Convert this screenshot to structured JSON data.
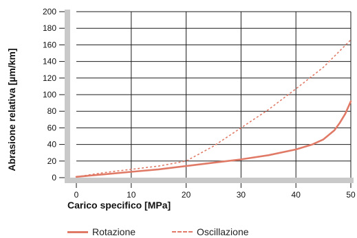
{
  "chart_data": {
    "type": "line",
    "xlabel": "Carico specifico [MPa]",
    "ylabel": "Abrasione relativa [µm/km]",
    "xlim": [
      0,
      50
    ],
    "ylim": [
      0,
      200
    ],
    "xticks": [
      "0",
      "10",
      "20",
      "30",
      "40",
      "50"
    ],
    "yticks": [
      "0",
      "20",
      "40",
      "60",
      "80",
      "100",
      "120",
      "140",
      "160",
      "180",
      "200"
    ],
    "grid": true,
    "legend_position": "bottom",
    "series": [
      {
        "name": "Rotazione",
        "style": "solid",
        "color": "#e07a67",
        "x": [
          0,
          5,
          10,
          15,
          20,
          25,
          30,
          35,
          40,
          43,
          45,
          47,
          48,
          49,
          50
        ],
        "y": [
          1,
          4,
          7,
          10,
          14,
          18,
          22,
          27,
          34,
          40,
          46,
          57,
          66,
          77,
          92
        ]
      },
      {
        "name": "Oscillazione",
        "style": "dashed",
        "color": "#e07a67",
        "x": [
          0,
          5,
          10,
          15,
          20,
          25,
          30,
          35,
          40,
          45,
          50
        ],
        "y": [
          1,
          6,
          10,
          14,
          20,
          38,
          60,
          82,
          107,
          133,
          166
        ]
      }
    ]
  }
}
